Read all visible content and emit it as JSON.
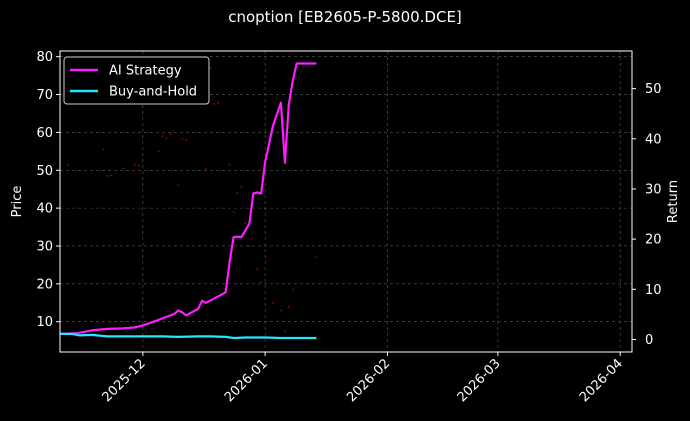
{
  "chart_data": {
    "type": "line",
    "title": "cnoption [EB2605-P-5800.DCE]",
    "xlabel": "",
    "ylabel_left": "Price",
    "ylabel_right": "Return",
    "x_ticks": [
      "2025-12",
      "2026-01",
      "2026-02",
      "2026-03",
      "2026-04"
    ],
    "x_range": [
      "2025-11-10",
      "2026-04-04"
    ],
    "ylim_left": [
      2,
      81.5
    ],
    "yticks_left": [
      10,
      20,
      30,
      40,
      50,
      60,
      70,
      80
    ],
    "ylim_right": [
      -2.5,
      57.5
    ],
    "yticks_right": [
      0,
      10,
      20,
      30,
      40,
      50
    ],
    "grid": true,
    "legend_position": "top-left",
    "series": [
      {
        "name": "AI Strategy",
        "axis": "right",
        "color": "#ff1cff",
        "x": [
          "2025-11-10",
          "2025-11-14",
          "2025-11-18",
          "2025-11-22",
          "2025-11-26",
          "2025-11-29",
          "2025-12-01",
          "2025-12-05",
          "2025-12-09",
          "2025-12-10",
          "2025-12-11",
          "2025-12-12",
          "2025-12-15",
          "2025-12-16",
          "2025-12-17",
          "2025-12-18",
          "2025-12-22",
          "2025-12-23",
          "2025-12-24",
          "2025-12-25",
          "2025-12-26",
          "2025-12-28",
          "2025-12-29",
          "2025-12-30",
          "2025-12-31",
          "2026-01-01",
          "2026-01-03",
          "2026-01-05",
          "2026-01-06",
          "2026-01-07",
          "2026-01-08",
          "2026-01-09",
          "2026-01-10",
          "2026-01-14"
        ],
        "values": [
          1.1,
          1.2,
          1.8,
          2.1,
          2.2,
          2.4,
          2.8,
          3.9,
          5.1,
          5.8,
          5.4,
          4.8,
          6.1,
          7.7,
          7.3,
          7.7,
          9.4,
          15.4,
          20.4,
          20.5,
          20.4,
          23.1,
          29.1,
          29.3,
          29.1,
          35.3,
          42.6,
          47.2,
          35.2,
          46.8,
          51.5,
          55.0,
          55.0,
          55.0
        ]
      },
      {
        "name": "Buy-and-Hold",
        "axis": "right",
        "color": "#26e5ff",
        "x": [
          "2025-11-10",
          "2025-11-13",
          "2025-11-15",
          "2025-11-18",
          "2025-11-22",
          "2025-11-26",
          "2025-12-01",
          "2025-12-06",
          "2025-12-10",
          "2025-12-15",
          "2025-12-18",
          "2025-12-22",
          "2025-12-24",
          "2025-12-27",
          "2026-01-01",
          "2026-01-05",
          "2026-01-08",
          "2026-01-14"
        ],
        "values": [
          1.1,
          1.1,
          0.8,
          0.9,
          0.6,
          0.6,
          0.6,
          0.6,
          0.5,
          0.6,
          0.6,
          0.5,
          0.3,
          0.4,
          0.4,
          0.3,
          0.3,
          0.3
        ]
      }
    ],
    "price_scatter": {
      "axis": "left",
      "color": "#8a0000",
      "points": [
        [
          "2025-11-12",
          51.5
        ],
        [
          "2025-11-21",
          55.5
        ],
        [
          "2025-11-22",
          48.5
        ],
        [
          "2025-11-23",
          48.7
        ],
        [
          "2025-11-26",
          50.5
        ],
        [
          "2025-11-29",
          51.5
        ],
        [
          "2025-11-30",
          51.2
        ],
        [
          "2025-12-05",
          55.0
        ],
        [
          "2025-12-06",
          59.0
        ],
        [
          "2025-12-07",
          58.5
        ],
        [
          "2025-12-08",
          59.5
        ],
        [
          "2025-12-10",
          46.0
        ],
        [
          "2025-12-11",
          58.2
        ],
        [
          "2025-12-12",
          58.0
        ],
        [
          "2025-12-17",
          50.5
        ],
        [
          "2025-12-18",
          77.0
        ],
        [
          "2025-12-19",
          67.5
        ],
        [
          "2025-12-20",
          67.8
        ],
        [
          "2025-12-23",
          51.5
        ],
        [
          "2025-12-24",
          39.0
        ],
        [
          "2025-12-25",
          44.0
        ],
        [
          "2025-12-26",
          45.5
        ],
        [
          "2025-12-27",
          36.0
        ],
        [
          "2025-12-28",
          30.0
        ],
        [
          "2025-12-30",
          24.0
        ],
        [
          "2025-12-31",
          20.5
        ],
        [
          "2026-01-03",
          15.0
        ],
        [
          "2026-01-05",
          13.0
        ],
        [
          "2026-01-06",
          7.5
        ],
        [
          "2026-01-07",
          14.0
        ],
        [
          "2026-01-08",
          18.5
        ],
        [
          "2026-01-14",
          27.0
        ]
      ]
    }
  }
}
